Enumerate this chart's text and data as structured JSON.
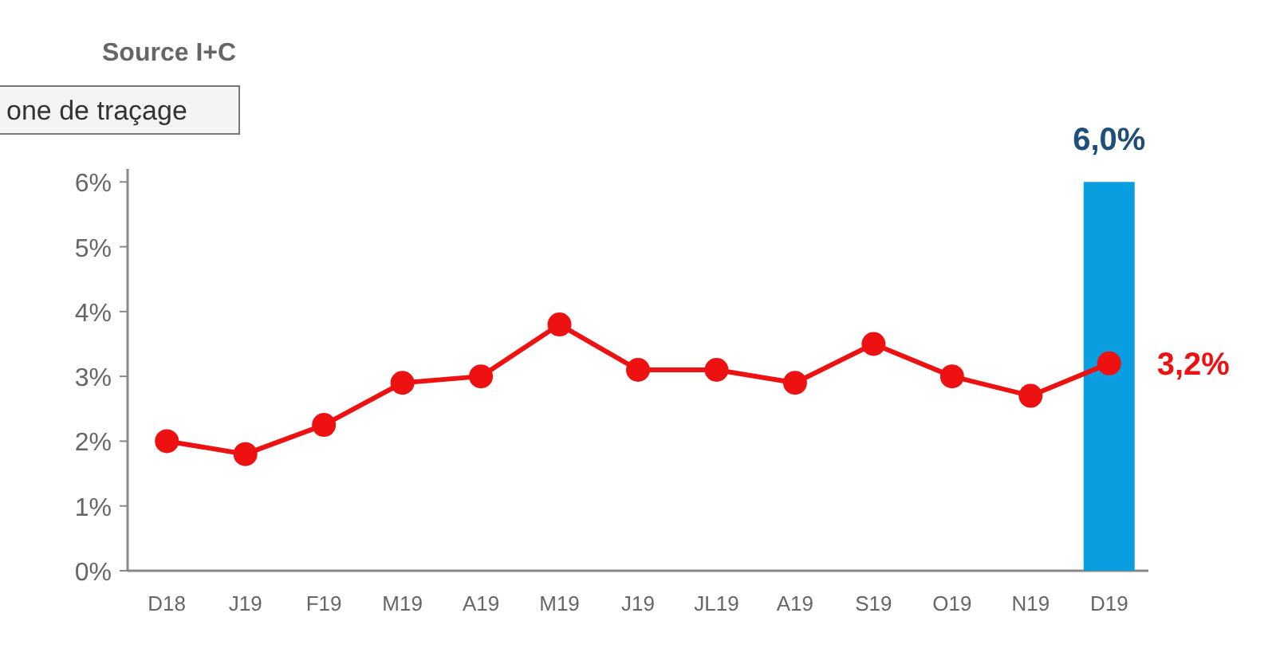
{
  "chart_data": {
    "type": "bar",
    "categories": [
      "D18",
      "J19",
      "F19",
      "M19",
      "A19",
      "M19",
      "J19",
      "JL19",
      "A19",
      "S19",
      "O19",
      "N19",
      "D19"
    ],
    "series": [
      {
        "color": "#0a9ddf",
        "values": [
          null,
          null,
          null,
          null,
          null,
          null,
          null,
          null,
          null,
          null,
          null,
          null,
          6.0
        ],
        "value_labels": [
          null,
          null,
          null,
          null,
          null,
          null,
          null,
          null,
          null,
          null,
          null,
          null,
          "6,0%"
        ]
      },
      {
        "type": "line",
        "color": "#ee1111",
        "marker": "circle",
        "values": [
          2.0,
          1.8,
          2.25,
          2.9,
          3.0,
          3.8,
          3.1,
          3.1,
          2.9,
          3.5,
          3.0,
          2.7,
          3.2
        ],
        "value_labels": [
          null,
          null,
          null,
          null,
          null,
          null,
          null,
          null,
          null,
          null,
          null,
          null,
          "3,2%"
        ]
      }
    ],
    "ylim": [
      0,
      6.2
    ],
    "yticks": [
      {
        "value": 0,
        "label": "0%"
      },
      {
        "value": 1,
        "label": "1%"
      },
      {
        "value": 2,
        "label": "2%"
      },
      {
        "value": 3,
        "label": "3%"
      },
      {
        "value": 4,
        "label": "4%"
      },
      {
        "value": 5,
        "label": "5%"
      },
      {
        "value": 6,
        "label": "6%"
      }
    ],
    "grid": false,
    "annotations": [
      "Source I+C",
      "one de traçage"
    ]
  }
}
